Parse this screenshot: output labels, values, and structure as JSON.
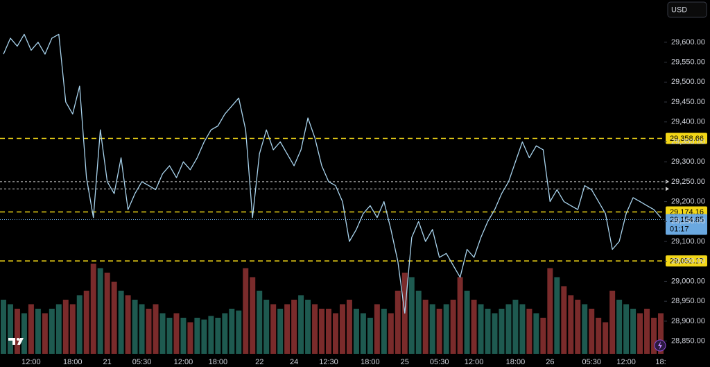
{
  "chart_data": {
    "type": "line",
    "currency": "USD",
    "color": "#a9d4ee",
    "categories": [
      null,
      null,
      null,
      null,
      "12:00",
      null,
      null,
      null,
      null,
      null,
      "18:00",
      null,
      null,
      null,
      null,
      "21",
      null,
      null,
      null,
      null,
      "05:30",
      null,
      null,
      null,
      null,
      null,
      "12:00",
      null,
      null,
      null,
      null,
      "18:00",
      null,
      null,
      null,
      null,
      null,
      "22",
      null,
      null,
      null,
      null,
      "24",
      null,
      null,
      null,
      null,
      "12:30",
      null,
      null,
      null,
      null,
      null,
      "18:00",
      null,
      null,
      null,
      null,
      "25",
      null,
      null,
      null,
      null,
      "05:30",
      null,
      null,
      null,
      null,
      "12:00",
      null,
      null,
      null,
      null,
      null,
      "18:00",
      null,
      null,
      null,
      null,
      "26",
      null,
      null,
      null,
      null,
      null,
      "05:30",
      null,
      null,
      null,
      null,
      "12:00",
      null,
      null,
      null,
      null,
      "18:"
    ],
    "values": [
      29570,
      29610,
      29590,
      29620,
      29580,
      29600,
      29570,
      29610,
      29620,
      29450,
      29420,
      29490,
      29260,
      29160,
      29380,
      29250,
      29220,
      29310,
      29180,
      29220,
      29250,
      29240,
      29230,
      29270,
      29290,
      29260,
      29300,
      29280,
      29310,
      29350,
      29380,
      29390,
      29420,
      29440,
      29460,
      29380,
      29160,
      29320,
      29380,
      29330,
      29350,
      29320,
      29290,
      29330,
      29410,
      29360,
      29290,
      29250,
      29240,
      29200,
      29100,
      29130,
      29170,
      29190,
      29160,
      29200,
      29130,
      29050,
      28920,
      29110,
      29150,
      29100,
      29130,
      29060,
      29070,
      29040,
      29010,
      29080,
      29060,
      29110,
      29150,
      29180,
      29220,
      29250,
      29300,
      29350,
      29310,
      29340,
      29330,
      29200,
      29230,
      29200,
      29190,
      29180,
      29240,
      29230,
      29200,
      29170,
      29080,
      29100,
      29170,
      29210,
      29200,
      29190,
      29180,
      29160
    ],
    "volume": [
      60,
      55,
      50,
      45,
      55,
      50,
      45,
      50,
      55,
      60,
      55,
      65,
      70,
      100,
      95,
      90,
      80,
      70,
      65,
      60,
      55,
      50,
      55,
      45,
      40,
      45,
      40,
      35,
      40,
      38,
      42,
      40,
      45,
      50,
      48,
      95,
      85,
      70,
      60,
      55,
      50,
      55,
      60,
      65,
      60,
      55,
      50,
      50,
      45,
      55,
      60,
      50,
      45,
      40,
      55,
      50,
      45,
      70,
      90,
      85,
      70,
      60,
      55,
      50,
      55,
      60,
      85,
      70,
      60,
      55,
      50,
      45,
      50,
      55,
      60,
      55,
      50,
      45,
      40,
      95,
      85,
      75,
      65,
      60,
      55,
      50,
      40,
      35,
      70,
      60,
      55,
      50,
      45,
      50,
      40,
      45
    ],
    "y2lim": [
      0,
      100
    ],
    "up_color": "#1e5a50",
    "down_color": "#7a2b2b",
    "ylim": [
      28818,
      29706
    ],
    "yticks": [
      {
        "value": 29600,
        "label": "29,600.00"
      },
      {
        "value": 29550,
        "label": "29,550.00"
      },
      {
        "value": 29500,
        "label": "29,500.00"
      },
      {
        "value": 29450,
        "label": "29,450.00"
      },
      {
        "value": 29400,
        "label": "29,400.00"
      },
      {
        "value": 29350,
        "label": "29,350.00"
      },
      {
        "value": 29300,
        "label": "29,300.00"
      },
      {
        "value": 29250,
        "label": "29,250.00"
      },
      {
        "value": 29200,
        "label": "29,200.00"
      },
      {
        "value": 29150,
        "label": "29,150.00"
      },
      {
        "value": 29100,
        "label": "29,100.00"
      },
      {
        "value": 29050,
        "label": "29,050.00"
      },
      {
        "value": 29000,
        "label": "29,000.00"
      },
      {
        "value": 28950,
        "label": "28,950.00"
      },
      {
        "value": 28900,
        "label": "28,900.00"
      },
      {
        "value": 28850,
        "label": "28,850.00"
      }
    ],
    "levels": [
      {
        "value": 29358.66,
        "label": "29,358.66"
      },
      {
        "value": 29174.16,
        "label": "29,174.16"
      },
      {
        "value": 29051.17,
        "label": "29,051.17"
      }
    ],
    "level_color": "#f2d617",
    "reference_lines": [
      29250,
      29232
    ],
    "last_price": {
      "value": 29154.85,
      "label": "29,154.85",
      "countdown": "01:17",
      "color": "#6aa8e0"
    }
  }
}
